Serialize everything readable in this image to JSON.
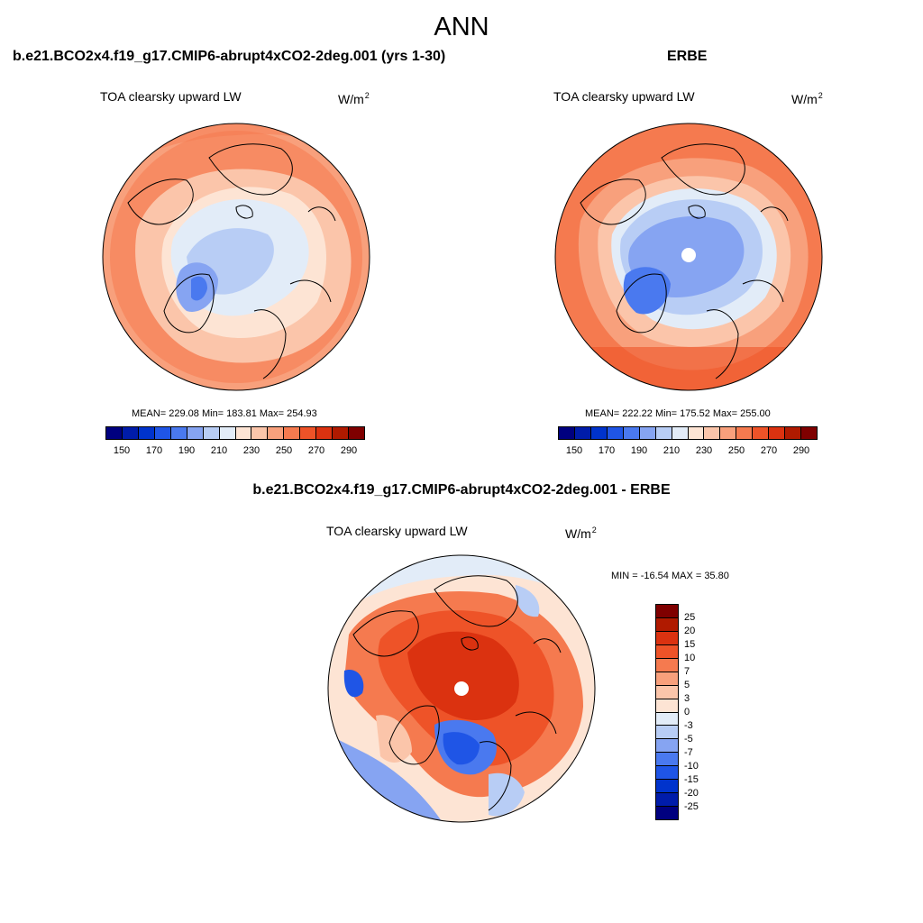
{
  "figure_title": "ANN",
  "panels": [
    {
      "title": "b.e21.BCO2x4.f19_g17.CMIP6-abrupt4xCO2-2deg.001 (yrs 1-30)",
      "variable": "TOA clearsky upward LW",
      "units": "W/m",
      "units_sup": "2",
      "stats": "MEAN= 229.08  Min= 183.81  Max= 254.93",
      "colorbar_labels": [
        "150",
        "170",
        "190",
        "210",
        "230",
        "250",
        "270",
        "290"
      ]
    },
    {
      "title": "ERBE",
      "variable": "TOA clearsky upward LW",
      "units": "W/m",
      "units_sup": "2",
      "stats": "MEAN= 222.22  Min= 175.52  Max= 255.00",
      "colorbar_labels": [
        "150",
        "170",
        "190",
        "210",
        "230",
        "250",
        "270",
        "290"
      ]
    },
    {
      "title": "b.e21.BCO2x4.f19_g17.CMIP6-abrupt4xCO2-2deg.001 - ERBE",
      "variable": "TOA clearsky upward LW",
      "units": "W/m",
      "units_sup": "2",
      "stats": "MIN = -16.54 MAX =  35.80",
      "colorbar_labels": [
        "25",
        "20",
        "15",
        "10",
        "7",
        "5",
        "3",
        "0",
        "-3",
        "-5",
        "-7",
        "-10",
        "-15",
        "-20",
        "-25"
      ]
    }
  ],
  "colors": {
    "abs_scale": [
      "#00007f",
      "#001caa",
      "#0033cc",
      "#1f55e6",
      "#4a79ef",
      "#86a4f2",
      "#b8cdf5",
      "#e2ecf8",
      "#fde4d4",
      "#fbc5aa",
      "#f8a07c",
      "#f57a4f",
      "#ee5328",
      "#db3210",
      "#b01a00",
      "#7f0000"
    ],
    "diff_scale": [
      "#7f0000",
      "#b01a00",
      "#db3210",
      "#ee5328",
      "#f57a4f",
      "#f8a07c",
      "#fbc5aa",
      "#fde4d4",
      "#e2ecf8",
      "#b8cdf5",
      "#86a4f2",
      "#4a79ef",
      "#1f55e6",
      "#0033cc",
      "#001caa",
      "#00007f"
    ]
  }
}
